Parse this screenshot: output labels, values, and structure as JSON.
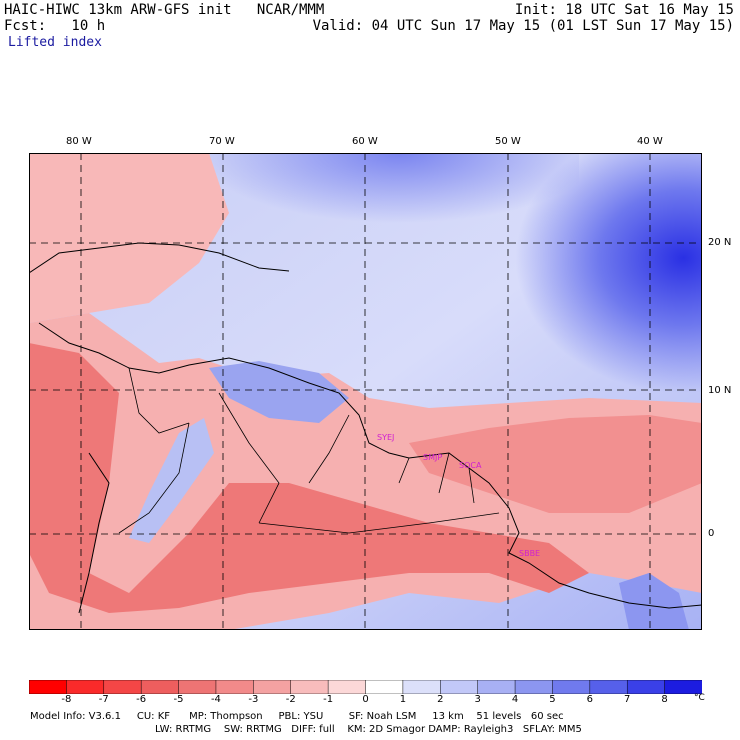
{
  "header": {
    "model_line": "HAIC-HIWC 13km ARW-GFS init   NCAR/MMM",
    "fcst_line": "Fcst:   10 h",
    "init_line": "Init: 18 UTC Sat 16 May 15",
    "valid_line": "Valid: 04 UTC Sun 17 May 15 (01 LST Sun 17 May 15)",
    "field": "Lifted index"
  },
  "map": {
    "lon_labels": [
      "80 W",
      "70 W",
      "60 W",
      "50 W",
      "40 W"
    ],
    "lat_labels": [
      "20 N",
      "10 N",
      "0"
    ],
    "stations": [
      "SYEJ",
      "SMJP",
      "SOCA",
      "SBBE"
    ],
    "colors": {
      "neg_strong": "#ff2020",
      "neg_mid": "#f06868",
      "neg_weak": "#f8b4b4",
      "neutral": "#ffe8e8",
      "pos_weak": "#c8cff8",
      "pos_mid": "#8c98f0",
      "pos_strong": "#2020e0",
      "grid": "#000000",
      "station": "#d020d0"
    }
  },
  "colorbar": {
    "levels": [
      "-8",
      "-7",
      "-6",
      "-5",
      "-4",
      "-3",
      "-2",
      "-1",
      "0",
      "1",
      "2",
      "3",
      "4",
      "5",
      "6",
      "7",
      "8"
    ],
    "unit": "°C",
    "colors": [
      "#ff0000",
      "#fa2a2a",
      "#f44646",
      "#ee5e5e",
      "#ee7474",
      "#f28a8a",
      "#f4a2a2",
      "#f8bcbc",
      "#fcd8d8",
      "#ffffff",
      "#dce0fa",
      "#c2c8f8",
      "#a8b0f4",
      "#8c96f0",
      "#707aee",
      "#5660ea",
      "#3a40e8",
      "#1c1ce0"
    ]
  },
  "info": {
    "line1": "Model Info: V3.6.1     CU: KF      MP: Thompson     PBL: YSU        SF: Noah LSM     13 km    51 levels   60 sec",
    "line2": "LW: RRTMG    SW: RRTMG   DIFF: full    KM: 2D Smagor DAMP: Rayleigh3   SFLAY: MM5"
  }
}
